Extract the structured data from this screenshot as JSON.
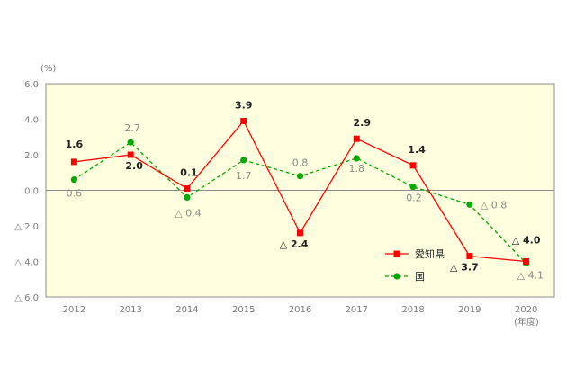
{
  "chart_data": {
    "type": "line",
    "ylabel": "(%)",
    "xlabel": "(年度)",
    "ylim": [
      -6.0,
      6.0
    ],
    "yticks": [
      6.0,
      4.0,
      2.0,
      0.0,
      -2.0,
      -4.0,
      -6.0
    ],
    "ytick_labels": [
      "6.0",
      "4.0",
      "2.0",
      "0.0",
      "△ 2.0",
      "△ 4.0",
      "△ 6.0"
    ],
    "categories": [
      "2012",
      "2013",
      "2014",
      "2015",
      "2016",
      "2017",
      "2018",
      "2019",
      "2020"
    ],
    "legend_position": "bottom-right",
    "plot_background": "#ffffe0",
    "series": [
      {
        "name": "愛知県",
        "color": "#ff0000",
        "marker": "square",
        "line": "solid",
        "values": [
          1.6,
          2.0,
          0.1,
          3.9,
          -2.4,
          2.9,
          1.4,
          -3.7,
          -4.0
        ],
        "labels": [
          "1.6",
          "2.0",
          "0.1",
          "3.9",
          "△ 2.4",
          "2.9",
          "1.4",
          "△ 3.7",
          "△ 4.0"
        ]
      },
      {
        "name": "国",
        "color": "#00aa00",
        "marker": "circle",
        "line": "dashed",
        "values": [
          0.6,
          2.7,
          -0.4,
          1.7,
          0.8,
          1.8,
          0.2,
          -0.8,
          -4.1
        ],
        "labels": [
          "0.6",
          "2.7",
          "△ 0.4",
          "1.7",
          "0.8",
          "1.8",
          "0.2",
          "△ 0.8",
          "△ 4.1"
        ]
      }
    ]
  }
}
